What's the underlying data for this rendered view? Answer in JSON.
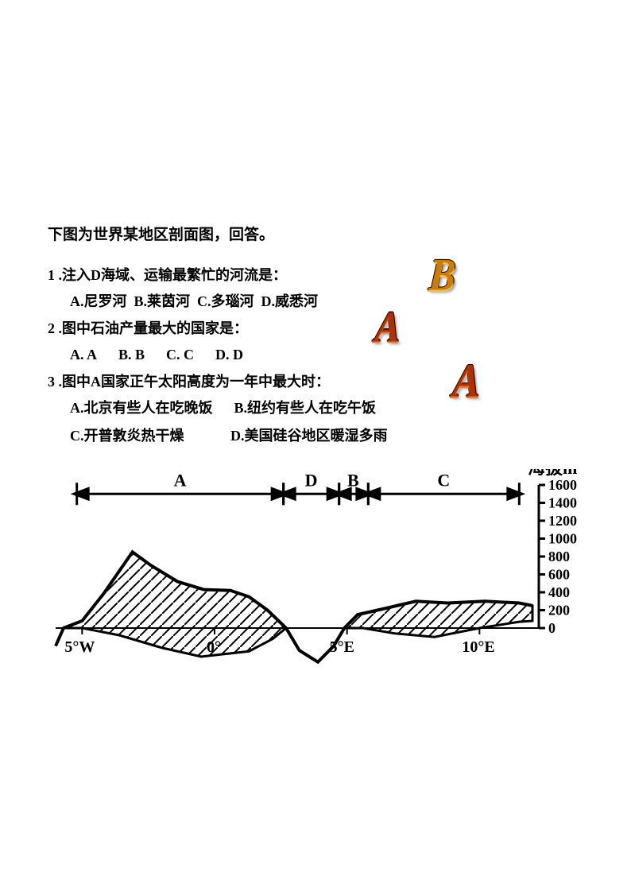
{
  "intro": "下图为世界某地区剖面图，回答。",
  "questions": [
    {
      "num": "1",
      "stem": ".注入D海域、运输最繁忙的河流是：",
      "options": "A.尼罗河  B.莱茵河  C.多瑙河  D.威悉河",
      "answer": "B",
      "answer_color": "#cf7a00",
      "answer_color2": "#f5c040",
      "answer_size": 50,
      "answer_x": 480,
      "answer_y": 36
    },
    {
      "num": "2",
      "stem": ".图中石油产量最大的国家是：",
      "options": "A. A      B. B      C. C      D. D",
      "answer": "A",
      "answer_color": "#b03000",
      "answer_color2": "#f07828",
      "answer_size": 48,
      "answer_x": 412,
      "answer_y": 104
    },
    {
      "num": "3",
      "stem": ".图中A国家正午太阳高度为一年中最大时：",
      "options_lines": [
        "A.北京有些人在吃晚饭      B.纽约有些人在吃午饭",
        "C.开普敦炎热干燥             D.美国硅谷地区暖湿多雨"
      ],
      "answer": "A",
      "answer_color": "#b03000",
      "answer_color2": "#f07828",
      "answer_size": 52,
      "answer_x": 510,
      "answer_y": 170
    }
  ],
  "chart": {
    "title": "海拔m",
    "title_fontsize": 22,
    "title_color": "#000000",
    "x_ticks": [
      {
        "lon": -5,
        "label": "5°W"
      },
      {
        "lon": 0,
        "label": "0°"
      },
      {
        "lon": 5,
        "label": "5°E"
      },
      {
        "lon": 10,
        "label": "10°E"
      }
    ],
    "y_ticks": [
      0,
      200,
      400,
      600,
      800,
      1000,
      1200,
      1400,
      1600
    ],
    "x_range": [
      -6,
      12
    ],
    "y_range": [
      -800,
      1600
    ],
    "sections": [
      {
        "label": "A",
        "from": -5.2,
        "to": 2.6
      },
      {
        "label": "D",
        "from": 2.6,
        "to": 4.7
      },
      {
        "label": "B",
        "from": 4.7,
        "to": 5.8
      },
      {
        "label": "C",
        "from": 5.8,
        "to": 11.5
      }
    ],
    "section_bar_y": 1500,
    "stroke_color": "#000000",
    "stroke_width": 3,
    "tick_fontsize": 18,
    "hatch_spacing": 14,
    "terrain_top": [
      [
        -6,
        -200
      ],
      [
        -5.7,
        0
      ],
      [
        -5.0,
        80
      ],
      [
        -4.2,
        380
      ],
      [
        -3.1,
        850
      ],
      [
        -2.4,
        700
      ],
      [
        -1.4,
        520
      ],
      [
        -0.4,
        430
      ],
      [
        0.6,
        420
      ],
      [
        1.3,
        350
      ],
      [
        2.0,
        200
      ],
      [
        2.7,
        0
      ],
      [
        3.2,
        -250
      ],
      [
        3.9,
        -380
      ],
      [
        4.5,
        -200
      ],
      [
        4.9,
        0
      ],
      [
        5.4,
        150
      ],
      [
        6.3,
        210
      ],
      [
        7.6,
        300
      ],
      [
        8.8,
        280
      ],
      [
        10.2,
        300
      ],
      [
        11.5,
        280
      ],
      [
        12.0,
        250
      ]
    ],
    "terrain_bottom": [
      [
        12.0,
        80
      ],
      [
        11.5,
        70
      ],
      [
        10.0,
        0
      ],
      [
        8.3,
        -100
      ],
      [
        6.8,
        -60
      ],
      [
        5.6,
        0
      ],
      [
        4.9,
        0
      ],
      [
        4.5,
        -200
      ],
      [
        3.9,
        -380
      ],
      [
        3.2,
        -250
      ],
      [
        2.7,
        0
      ],
      [
        2.2,
        -120
      ],
      [
        1.3,
        -260
      ],
      [
        -0.5,
        -320
      ],
      [
        -2.0,
        -220
      ],
      [
        -3.6,
        -80
      ],
      [
        -5.0,
        0
      ],
      [
        -5.7,
        0
      ],
      [
        -6,
        -200
      ]
    ]
  }
}
